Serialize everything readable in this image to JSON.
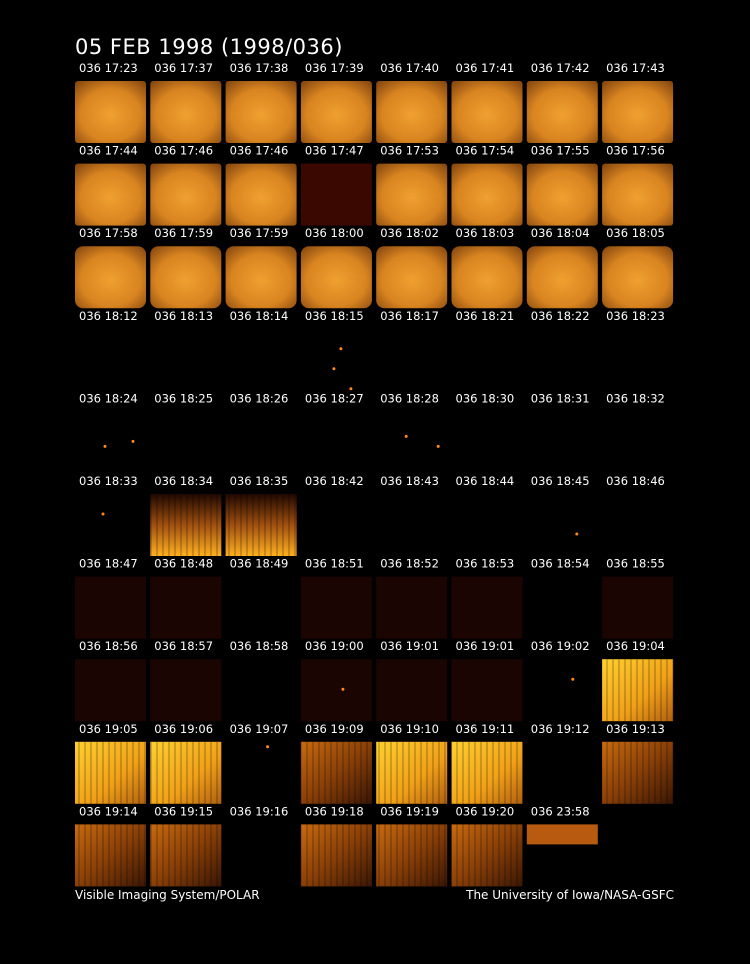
{
  "title": "05 FEB 1998  (1998/036)",
  "frames": [
    [
      "036 17:23",
      "036 17:37",
      "036 17:38",
      "036 17:39",
      "036 17:40",
      "036 17:41",
      "036 17:42",
      "036 17:43"
    ],
    [
      "036 17:44",
      "036 17:46",
      "036 17:46",
      "036 17:47",
      "036 17:53",
      "036 17:54",
      "036 17:55",
      "036 17:56"
    ],
    [
      "036 17:58",
      "036 17:59",
      "036 17:59",
      "036 18:00",
      "036 18:02",
      "036 18:03",
      "036 18:04",
      "036 18:05"
    ],
    [
      "036 18:12",
      "036 18:13",
      "036 18:14",
      "036 18:15",
      "036 18:17",
      "036 18:21",
      "036 18:22",
      "036 18:23"
    ],
    [
      "036 18:24",
      "036 18:25",
      "036 18:26",
      "036 18:27",
      "036 18:28",
      "036 18:30",
      "036 18:31",
      "036 18:32"
    ],
    [
      "036 18:33",
      "036 18:34",
      "036 18:35",
      "036 18:42",
      "036 18:43",
      "036 18:44",
      "036 18:45",
      "036 18:46"
    ],
    [
      "036 18:47",
      "036 18:48",
      "036 18:49",
      "036 18:51",
      "036 18:52",
      "036 18:53",
      "036 18:54",
      "036 18:55"
    ],
    [
      "036 18:56",
      "036 18:57",
      "036 18:58",
      "036 19:00",
      "036 19:01",
      "036 19:01",
      "036 19:02",
      "036 19:04"
    ],
    [
      "036 19:05",
      "036 19:06",
      "036 19:07",
      "036 19:09",
      "036 19:10",
      "036 19:11",
      "036 19:12",
      "036 19:13"
    ],
    [
      "036 19:14",
      "036 19:15",
      "036 19:16",
      "036 19:18",
      "036 19:19",
      "036 19:20",
      "036 23:58"
    ]
  ],
  "footer": {
    "left": "Visible Imaging System/POLAR",
    "right": "The University of Iowa/NASA-GSFC"
  }
}
